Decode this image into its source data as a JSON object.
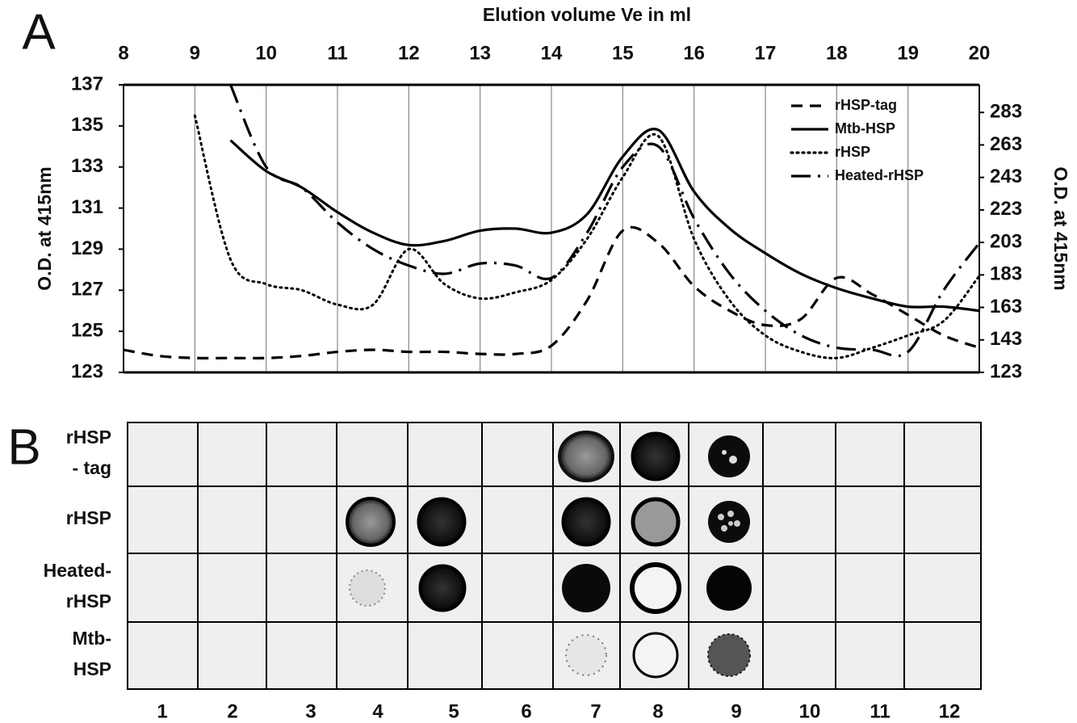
{
  "chart_data": {
    "type": "line",
    "panel": "A",
    "xlabel": "Elution volume Ve in ml",
    "ylabel": "O.D. at 415nm",
    "y2label": "O.D. at 415nm",
    "x": [
      8,
      8.5,
      9,
      9.5,
      10,
      10.5,
      11,
      11.5,
      12,
      12.5,
      13,
      13.5,
      14,
      14.5,
      15,
      15.5,
      16,
      16.5,
      17,
      17.5,
      18,
      18.5,
      19,
      19.5,
      20
    ],
    "xlim": [
      8,
      20
    ],
    "xticks": [
      8,
      9,
      10,
      11,
      12,
      13,
      14,
      15,
      16,
      17,
      18,
      19,
      20
    ],
    "ylim": [
      123,
      137
    ],
    "yticks": [
      123,
      125,
      127,
      129,
      131,
      133,
      135,
      137
    ],
    "y2lim": [
      123,
      300
    ],
    "y2ticks": [
      123,
      143,
      163,
      183,
      203,
      223,
      243,
      263,
      283
    ],
    "grid": true,
    "legend": "upper right",
    "series": [
      {
        "name": "rHSP-tag",
        "color": "#000000",
        "dash": "dashed",
        "values": [
          124.1,
          123.8,
          123.7,
          123.7,
          123.7,
          123.8,
          124.0,
          124.1,
          124.0,
          124.0,
          123.9,
          123.9,
          124.3,
          126.5,
          129.9,
          129.3,
          127.2,
          126.0,
          125.3,
          125.6,
          127.6,
          126.8,
          125.8,
          124.8,
          124.2
        ]
      },
      {
        "name": "Mtb-HSP",
        "color": "#000000",
        "dash": "solid",
        "values": [
          null,
          null,
          null,
          134.3,
          132.8,
          132.0,
          130.8,
          129.8,
          129.2,
          129.4,
          129.9,
          130.0,
          129.8,
          130.7,
          133.5,
          134.8,
          131.8,
          130.0,
          128.8,
          127.8,
          127.1,
          126.6,
          126.2,
          126.2,
          126.0
        ]
      },
      {
        "name": "rHSP",
        "color": "#000000",
        "dash": "dotted",
        "values": [
          null,
          null,
          135.5,
          128.5,
          127.3,
          127.0,
          126.3,
          126.3,
          129.0,
          127.3,
          126.6,
          126.9,
          127.5,
          129.5,
          132.5,
          134.5,
          129.5,
          126.5,
          124.8,
          124.0,
          123.7,
          124.2,
          124.8,
          125.5,
          127.7
        ]
      },
      {
        "name": "Heated-rHSP",
        "color": "#000000",
        "dash": "dashdot",
        "values": [
          null,
          null,
          null,
          137,
          133.0,
          132.0,
          130.3,
          129.0,
          128.2,
          127.8,
          128.3,
          128.2,
          127.6,
          129.8,
          133.0,
          134.0,
          130.5,
          127.8,
          126.0,
          124.8,
          124.2,
          124.1,
          124.0,
          127.0,
          129.3
        ]
      }
    ]
  },
  "blot": {
    "panel": "B",
    "rows": [
      [
        "rHSP",
        "-  tag"
      ],
      [
        "rHSP"
      ],
      [
        "Heated-",
        "rHSP"
      ],
      [
        "Mtb-",
        "HSP"
      ]
    ],
    "columns": [
      1,
      2,
      3,
      4,
      5,
      6,
      7,
      8,
      9,
      10,
      11,
      12
    ]
  }
}
